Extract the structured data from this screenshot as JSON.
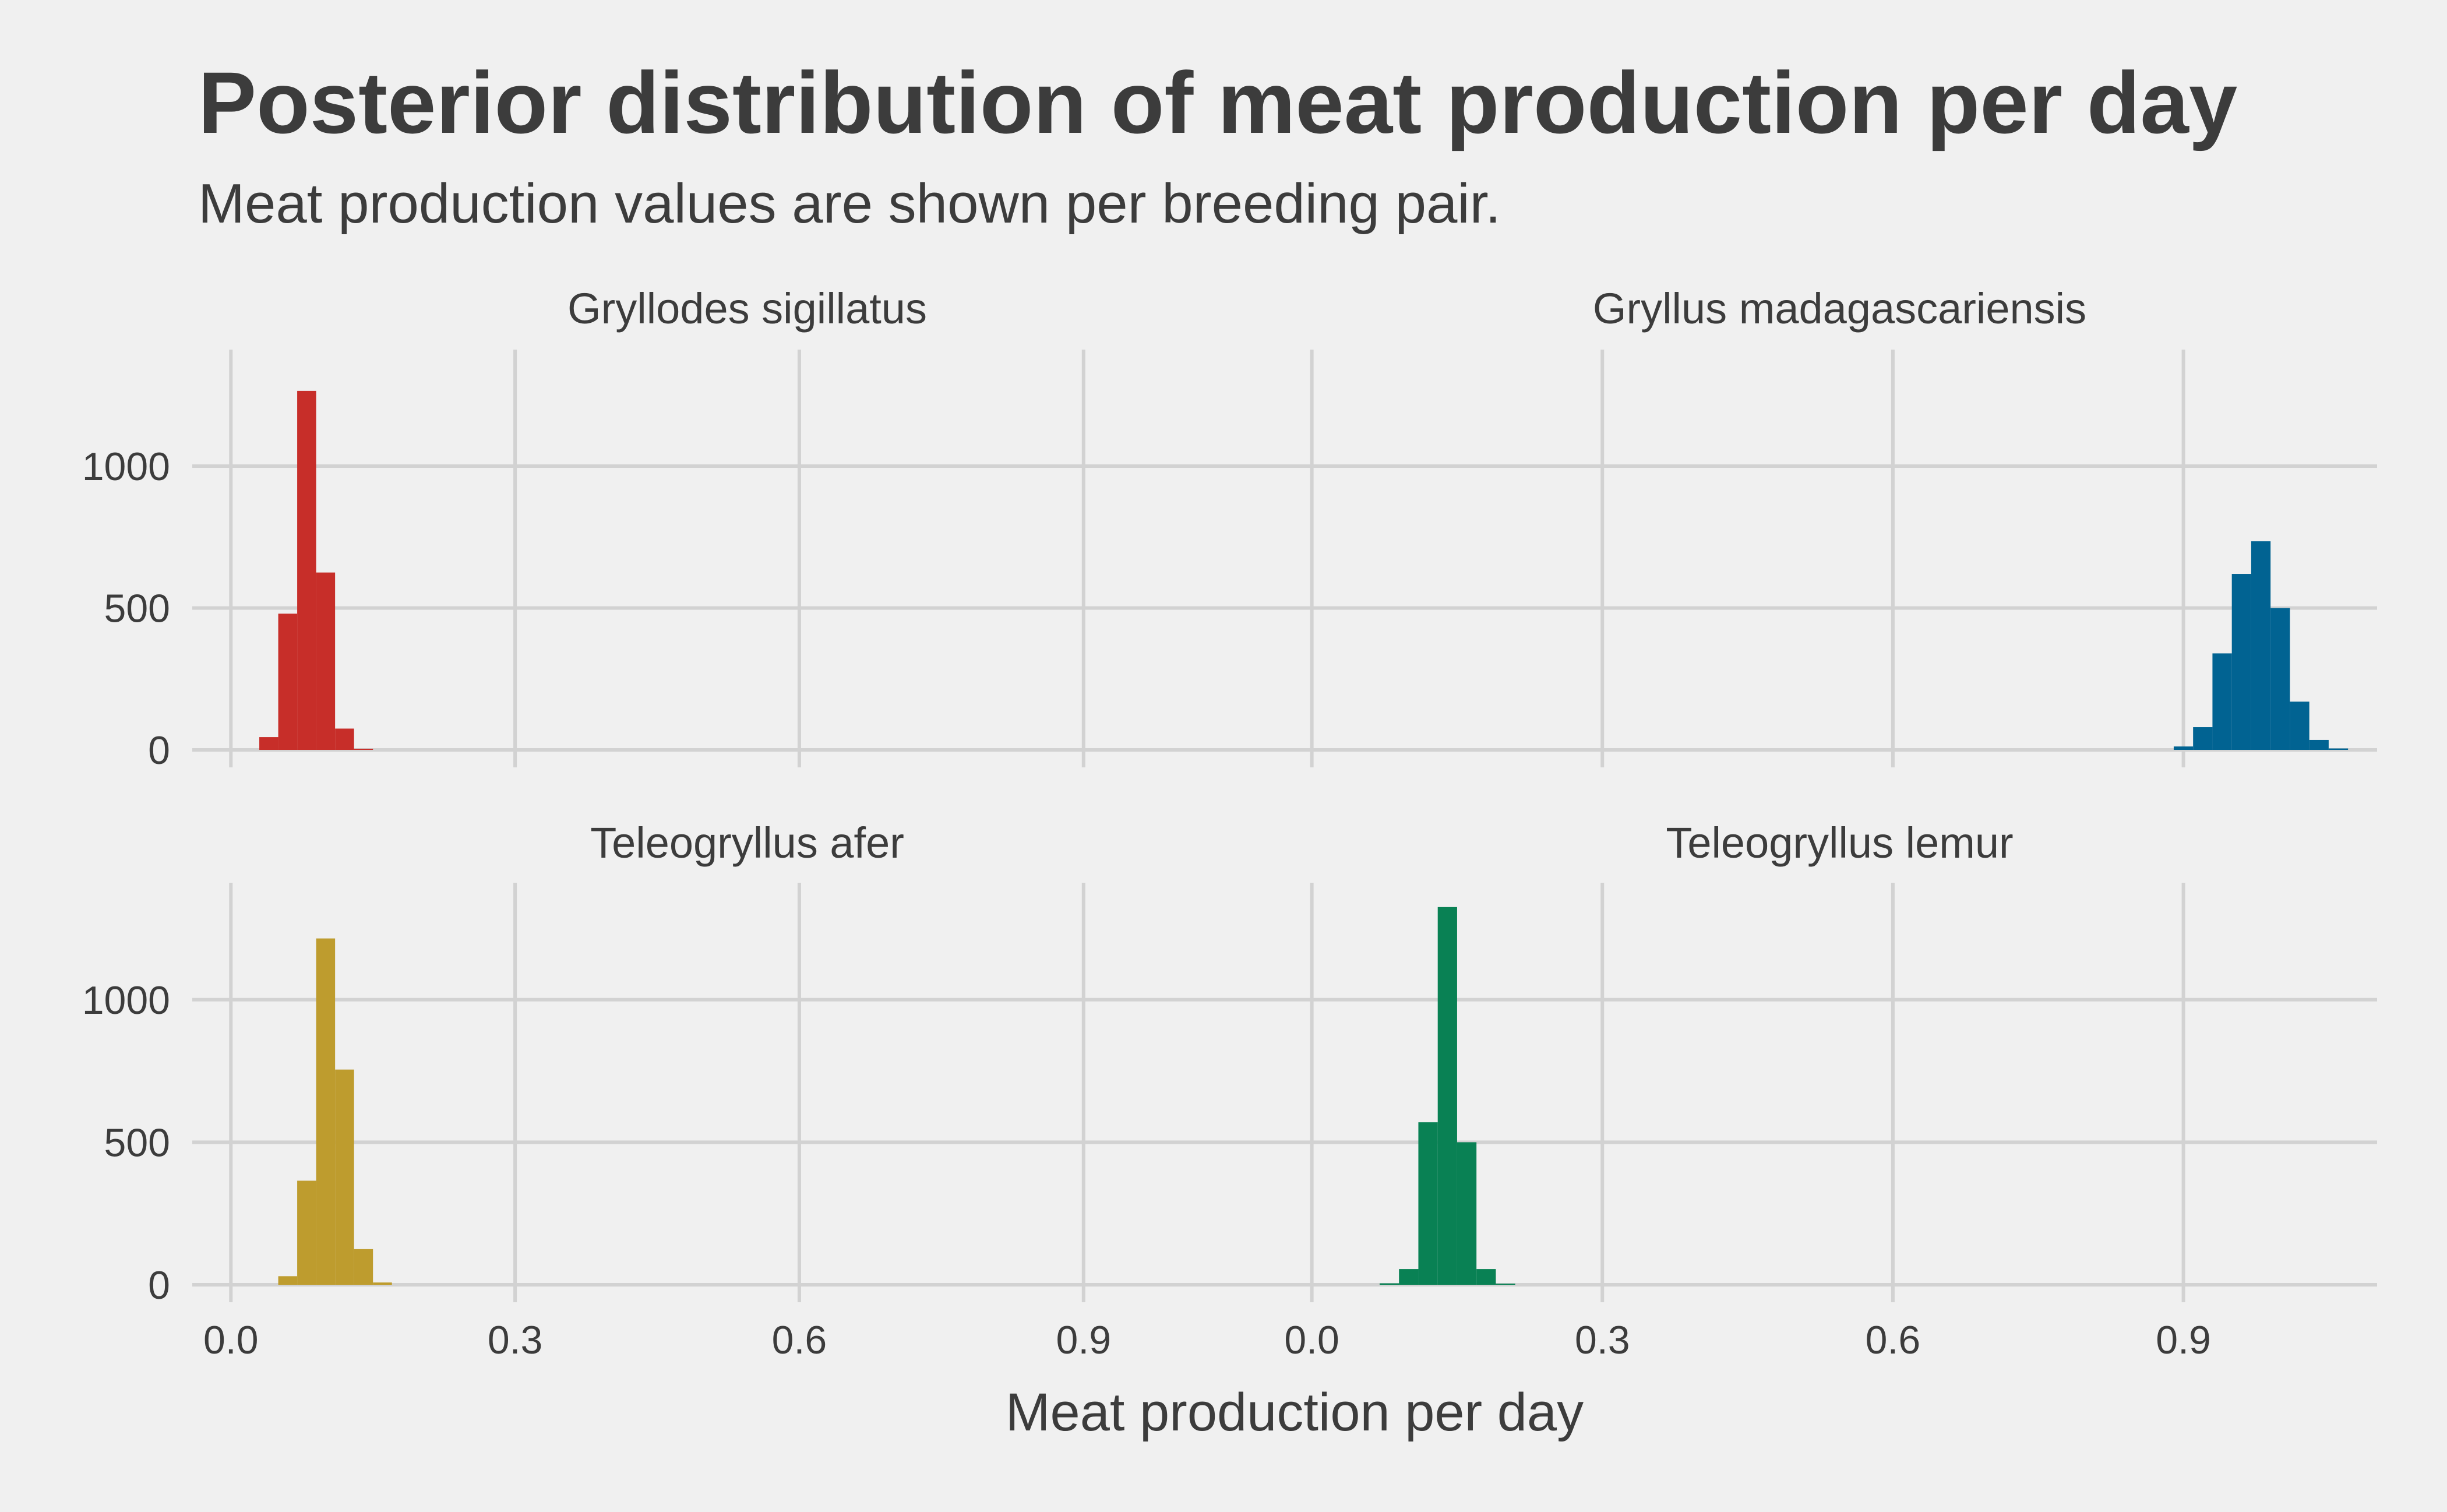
{
  "chart_data": {
    "type": "bar",
    "title": "Posterior distribution of meat production per day",
    "subtitle": "Meat production values are shown per breeding pair.",
    "xlabel": "Meat production per day",
    "ylabel": "",
    "xlim": [
      -0.01,
      1.1
    ],
    "ylim": [
      0,
      1390
    ],
    "x_ticks": [
      0.0,
      0.3,
      0.6,
      0.9
    ],
    "x_tick_labels": [
      "0.0",
      "0.3",
      "0.6",
      "0.9"
    ],
    "y_ticks": [
      0,
      500,
      1000
    ],
    "y_tick_labels": [
      "0",
      "500",
      "1000"
    ],
    "grid": true,
    "legend": "none",
    "bin_width": 0.02,
    "panels": [
      {
        "name": "Gryllodes sigillatus",
        "color": "#c72e29",
        "bins": [
          {
            "x": 0.04,
            "count": 45
          },
          {
            "x": 0.06,
            "count": 480
          },
          {
            "x": 0.08,
            "count": 1265
          },
          {
            "x": 0.1,
            "count": 625
          },
          {
            "x": 0.12,
            "count": 75
          },
          {
            "x": 0.14,
            "count": 4
          }
        ]
      },
      {
        "name": "Gryllus madagascariensis",
        "color": "#016392",
        "bins": [
          {
            "x": 0.9,
            "count": 12
          },
          {
            "x": 0.92,
            "count": 80
          },
          {
            "x": 0.94,
            "count": 340
          },
          {
            "x": 0.96,
            "count": 620
          },
          {
            "x": 0.98,
            "count": 735
          },
          {
            "x": 1.0,
            "count": 500
          },
          {
            "x": 1.02,
            "count": 170
          },
          {
            "x": 1.04,
            "count": 35
          },
          {
            "x": 1.06,
            "count": 5
          }
        ]
      },
      {
        "name": "Teleogryllus afer",
        "color": "#be9c2e",
        "bins": [
          {
            "x": 0.06,
            "count": 30
          },
          {
            "x": 0.08,
            "count": 365
          },
          {
            "x": 0.1,
            "count": 1215
          },
          {
            "x": 0.12,
            "count": 755
          },
          {
            "x": 0.14,
            "count": 125
          },
          {
            "x": 0.16,
            "count": 8
          }
        ]
      },
      {
        "name": "Teleogryllus lemur",
        "color": "#098154",
        "bins": [
          {
            "x": 0.08,
            "count": 5
          },
          {
            "x": 0.1,
            "count": 55
          },
          {
            "x": 0.12,
            "count": 570
          },
          {
            "x": 0.14,
            "count": 1325
          },
          {
            "x": 0.16,
            "count": 500
          },
          {
            "x": 0.18,
            "count": 55
          },
          {
            "x": 0.2,
            "count": 4
          }
        ]
      }
    ]
  }
}
